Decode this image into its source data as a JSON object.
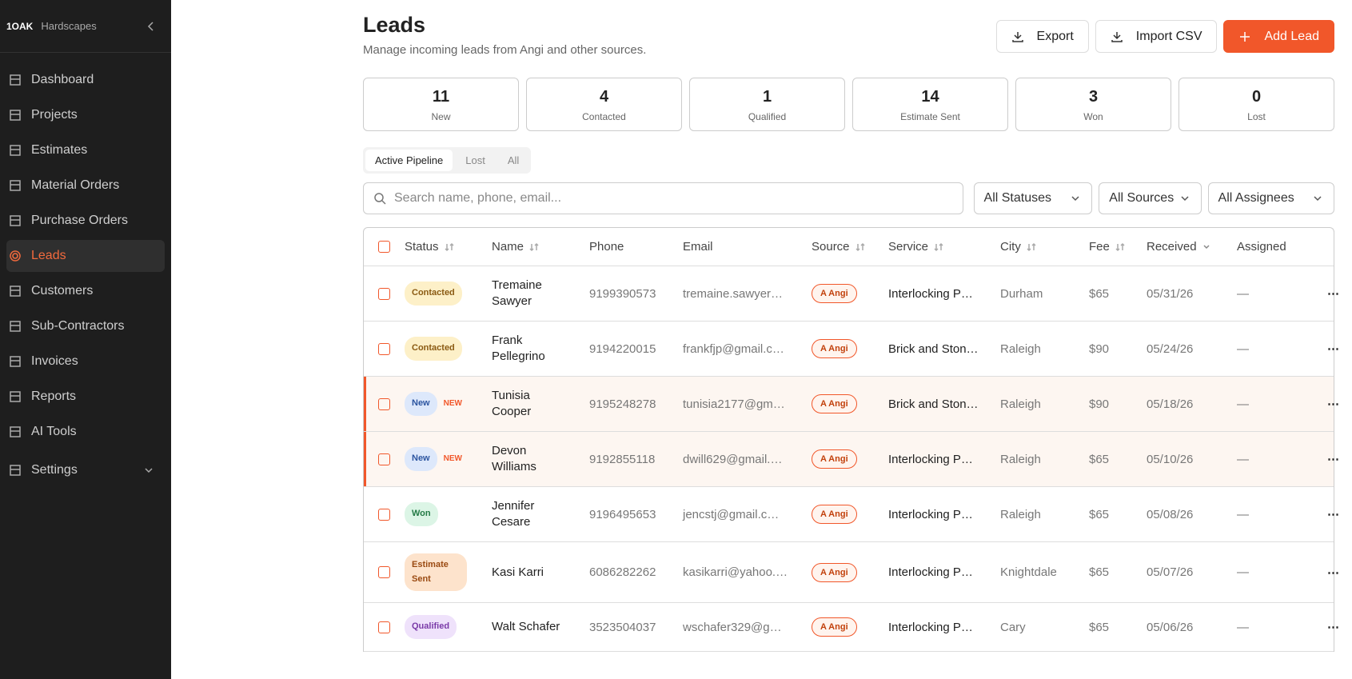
{
  "sidebar": {
    "brand": "1OAK",
    "brand_name": "Hardscapes",
    "nav": [
      {
        "label": "Dashboard"
      },
      {
        "label": "Projects"
      },
      {
        "label": "Estimates"
      },
      {
        "label": "Material Orders"
      },
      {
        "label": "Purchase Orders"
      },
      {
        "label": "Leads",
        "active": true
      },
      {
        "label": "Customers"
      },
      {
        "label": "Sub-Contractors"
      },
      {
        "label": "Invoices"
      },
      {
        "label": "Reports"
      },
      {
        "label": "AI Tools"
      },
      {
        "label": "Settings",
        "expandable": true
      }
    ]
  },
  "header": {
    "title": "Leads",
    "subtitle": "Manage incoming leads from Angi and other sources.",
    "buttons": [
      {
        "label": "Export"
      },
      {
        "label": "Import CSV"
      },
      {
        "label": "Add Lead",
        "primary": true
      }
    ]
  },
  "stats": [
    {
      "value": 11,
      "label": "New"
    },
    {
      "value": 4,
      "label": "Contacted"
    },
    {
      "value": 1,
      "label": "Qualified"
    },
    {
      "value": 14,
      "label": "Estimate Sent"
    },
    {
      "value": 3,
      "label": "Won"
    },
    {
      "value": 0,
      "label": "Lost"
    }
  ],
  "tabs": [
    {
      "label": "Active Pipeline",
      "active": true
    },
    {
      "label": "Lost"
    },
    {
      "label": "All"
    }
  ],
  "search": {
    "placeholder": "Search name, phone, email..."
  },
  "filters": [
    "All Statuses",
    "All Sources",
    "All Assignees"
  ],
  "table": {
    "columns": [
      {
        "label": "Status",
        "sort": "both"
      },
      {
        "label": "Name",
        "sort": "both"
      },
      {
        "label": "Phone"
      },
      {
        "label": "Email"
      },
      {
        "label": "Source",
        "sort": "both"
      },
      {
        "label": "Service",
        "sort": "both"
      },
      {
        "label": "City",
        "sort": "both"
      },
      {
        "label": "Fee",
        "sort": "both"
      },
      {
        "label": "Received",
        "sort": "desc"
      },
      {
        "label": "Assigned"
      }
    ],
    "rows": [
      {
        "status": "Contacted",
        "status_bg": "#fdf0c8",
        "status_fg": "#8a5a12",
        "name": "Tremaine Sawyer",
        "phone": "9199390573",
        "email": "tremaine.sawyer…",
        "source": "A Angi",
        "service": "Interlocking P…",
        "city": "Durham",
        "fee": "$65",
        "received": "05/31/26",
        "assigned": "—"
      },
      {
        "status": "Contacted",
        "status_bg": "#fdf0c8",
        "status_fg": "#8a5a12",
        "name": "Frank Pellegrino",
        "phone": "9194220015",
        "email": "frankfjp@gmail.c…",
        "source": "A Angi",
        "service": "Brick and Ston…",
        "city": "Raleigh",
        "fee": "$90",
        "received": "05/24/26",
        "assigned": "—"
      },
      {
        "status": "New",
        "badge": "NEW",
        "highlight": true,
        "status_bg": "#dde8fb",
        "status_fg": "#2c55a0",
        "name": "Tunisia Cooper",
        "phone": "9195248278",
        "email": "tunisia2177@gm…",
        "source": "A Angi",
        "service": "Brick and Ston…",
        "city": "Raleigh",
        "fee": "$90",
        "received": "05/18/26",
        "assigned": "—"
      },
      {
        "status": "New",
        "badge": "NEW",
        "highlight": true,
        "status_bg": "#dde8fb",
        "status_fg": "#2c55a0",
        "name": "Devon Williams",
        "phone": "9192855118",
        "email": "dwill629@gmail.…",
        "source": "A Angi",
        "service": "Interlocking P…",
        "city": "Raleigh",
        "fee": "$65",
        "received": "05/10/26",
        "assigned": "—"
      },
      {
        "status": "Won",
        "status_bg": "#dcf5e6",
        "status_fg": "#237a45",
        "name": "Jennifer Cesare",
        "phone": "9196495653",
        "email": "jencstj@gmail.c…",
        "source": "A Angi",
        "service": "Interlocking P…",
        "city": "Raleigh",
        "fee": "$65",
        "received": "05/08/26",
        "assigned": "—"
      },
      {
        "status": "Estimate Sent",
        "status_bg": "#fde3cc",
        "status_fg": "#9a4a12",
        "name": "Kasi Karri",
        "phone": "6086282262",
        "email": "kasikarri@yahoo.…",
        "source": "A Angi",
        "service": "Interlocking P…",
        "city": "Knightdale",
        "fee": "$65",
        "received": "05/07/26",
        "assigned": "—"
      },
      {
        "status": "Qualified",
        "status_bg": "#efe2fb",
        "status_fg": "#7a3aa8",
        "name": "Walt Schafer",
        "phone": "3523504037",
        "email": "wschafer329@g…",
        "source": "A Angi",
        "service": "Interlocking P…",
        "city": "Cary",
        "fee": "$65",
        "received": "05/06/26",
        "assigned": "—"
      }
    ]
  }
}
